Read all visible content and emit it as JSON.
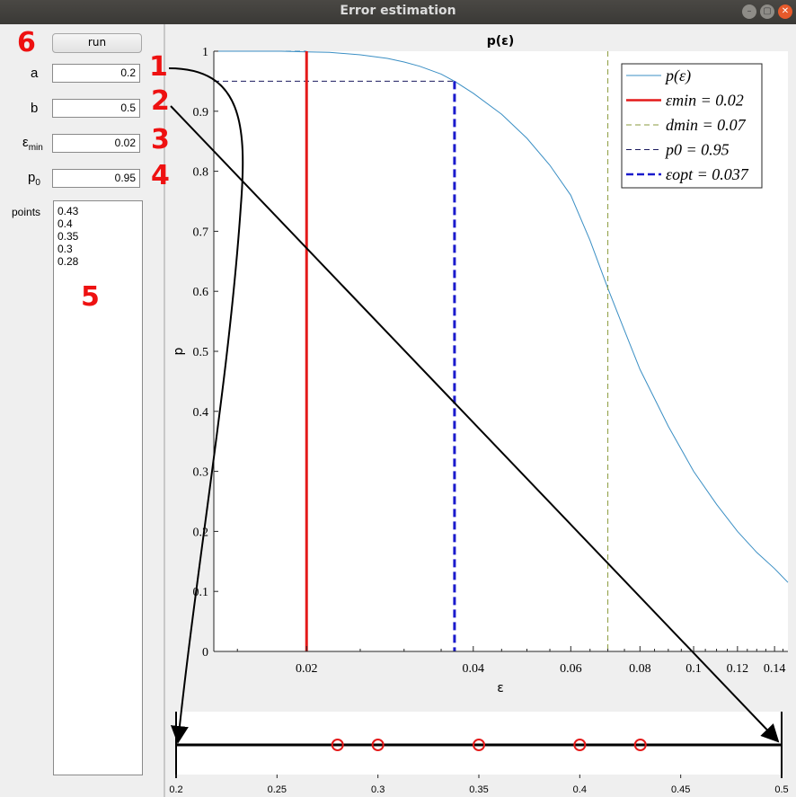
{
  "window": {
    "title": "Error estimation"
  },
  "controls": {
    "run_label": "run",
    "a_label": "a",
    "a_value": "0.2",
    "b_label": "b",
    "b_value": "0.5",
    "eps_label": "ε",
    "eps_sub": "min",
    "eps_value": "0.02",
    "p0_label": "p",
    "p0_sub": "0",
    "p0_value": "0.95",
    "points_label": "points",
    "points": [
      "0.43",
      "0.4",
      "0.35",
      "0.3",
      "0.28"
    ]
  },
  "annotations": [
    "1",
    "2",
    "3",
    "4",
    "5",
    "6"
  ],
  "chart_data": [
    {
      "type": "line",
      "title": "p(ε)",
      "xlabel": "ε",
      "ylabel": "p",
      "xscale": "log",
      "xlim": [
        0.0136,
        0.148
      ],
      "ylim": [
        0,
        1
      ],
      "yticks": [
        0,
        0.1,
        0.2,
        0.3,
        0.4,
        0.5,
        0.6,
        0.7,
        0.8,
        0.9,
        1
      ],
      "yticklabels": [
        "0",
        "0.1",
        "0.2",
        "0.3",
        "0.4",
        "0.5",
        "0.6",
        "0.7",
        "0.8",
        "0.9",
        "1"
      ],
      "xticks": [
        0.02,
        0.04,
        0.06,
        0.08,
        0.1,
        0.12,
        0.14
      ],
      "xticklabels": [
        "0.02",
        "0.04",
        "0.06",
        "0.08",
        "0.1",
        "0.12",
        "0.14"
      ],
      "legend_position": "top-right",
      "legend": [
        {
          "text": "p(ε)",
          "color": "#3b8fc4",
          "style": "solid"
        },
        {
          "text": "εmin = 0.02",
          "color": "#e41a1a",
          "style": "solid"
        },
        {
          "text": "dmin = 0.07",
          "color": "#8a9a3c",
          "style": "dashed"
        },
        {
          "text": "p0 = 0.95",
          "color": "#1a1a5e",
          "style": "dashed"
        },
        {
          "text": "εopt = 0.037",
          "color": "#1a1acc",
          "style": "dashed"
        }
      ],
      "series": [
        {
          "name": "p(ε)",
          "x": [
            0.0136,
            0.016,
            0.018,
            0.02,
            0.022,
            0.025,
            0.028,
            0.03,
            0.032,
            0.035,
            0.037,
            0.04,
            0.045,
            0.05,
            0.055,
            0.06,
            0.065,
            0.07,
            0.075,
            0.08,
            0.09,
            0.1,
            0.11,
            0.12,
            0.13,
            0.14,
            0.148
          ],
          "y": [
            1.0,
            1.0,
            1.0,
            0.999,
            0.998,
            0.994,
            0.988,
            0.982,
            0.975,
            0.962,
            0.95,
            0.93,
            0.895,
            0.855,
            0.81,
            0.76,
            0.685,
            0.605,
            0.535,
            0.47,
            0.375,
            0.3,
            0.245,
            0.2,
            0.165,
            0.138,
            0.115
          ]
        }
      ],
      "vlines": [
        {
          "name": "εmin = 0.02",
          "x": 0.02,
          "color": "#e41a1a"
        },
        {
          "name": "dmin = 0.07",
          "x": 0.07,
          "color": "#8a9a3c"
        },
        {
          "name": "εopt = 0.037",
          "x": 0.037,
          "color": "#1a1acc"
        }
      ],
      "hlines": [
        {
          "name": "p0 = 0.95",
          "y": 0.95,
          "color": "#1a1a5e"
        }
      ]
    },
    {
      "type": "scatter",
      "xlim": [
        0.2,
        0.5
      ],
      "xticks": [
        0.2,
        0.25,
        0.3,
        0.35,
        0.4,
        0.45,
        0.5
      ],
      "xticklabels": [
        "0.2",
        "0.25",
        "0.3",
        "0.35",
        "0.4",
        "0.45",
        "0.5"
      ],
      "points": [
        0.28,
        0.3,
        0.35,
        0.4,
        0.43
      ],
      "marker_color": "#e41a1a"
    }
  ]
}
